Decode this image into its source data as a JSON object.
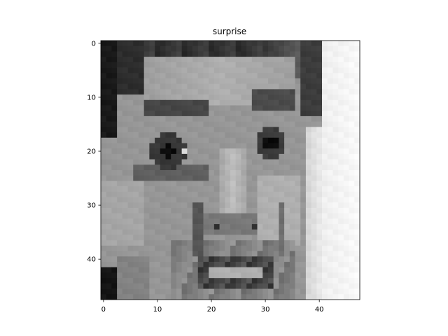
{
  "chart_data": {
    "type": "heatmap",
    "title": "surprise",
    "colormap": "gray",
    "image_rows": 48,
    "image_cols": 48,
    "xlim": [
      -0.5,
      47.5
    ],
    "ylim": [
      47.5,
      -0.5
    ],
    "x_ticks": [
      0,
      10,
      20,
      30,
      40
    ],
    "y_ticks": [
      0,
      10,
      20,
      30,
      40
    ],
    "x_tick_labels": [
      "0",
      "10",
      "20",
      "30",
      "40"
    ],
    "y_tick_labels": [
      "0",
      "10",
      "20",
      "30",
      "40"
    ],
    "grid": false,
    "legend": "none"
  }
}
